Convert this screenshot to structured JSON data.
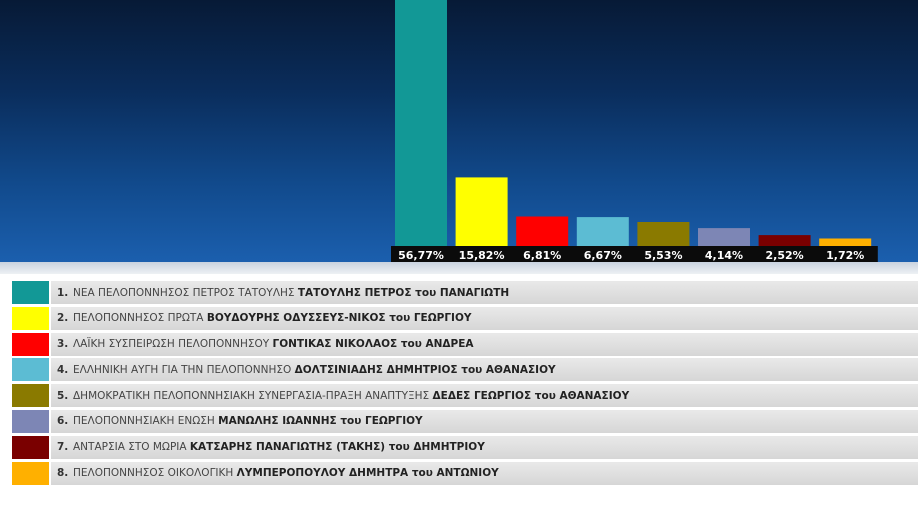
{
  "chart_data": {
    "type": "bar",
    "categories": [
      "1",
      "2",
      "3",
      "4",
      "5",
      "6",
      "7",
      "8"
    ],
    "values": [
      56.77,
      15.82,
      6.81,
      6.67,
      5.53,
      4.14,
      2.52,
      1.72
    ],
    "value_labels": [
      "56,77%",
      "15,82%",
      "6,81%",
      "6,67%",
      "5,53%",
      "4,14%",
      "2,52%",
      "1,72%"
    ],
    "colors": [
      "#129896",
      "#ffff00",
      "#ff0000",
      "#5cbcd3",
      "#8a7a00",
      "#7d86b5",
      "#7a0000",
      "#ffb000"
    ],
    "ylim": [
      0,
      56.77
    ],
    "grid": false
  },
  "legend": [
    {
      "num": "1.",
      "party": "ΝΕΑ ΠΕΛΟΠΟΝΝΗΣΟΣ ΠΕΤΡΟΣ ΤΑΤΟΥΛΗΣ",
      "candidate": "ΤΑΤΟΥΛΗΣ ΠΕΤΡΟΣ του ΠΑΝΑΓΙΩΤΗ"
    },
    {
      "num": "2.",
      "party": "ΠΕΛΟΠΟΝΝΗΣΟΣ ΠΡΩΤΑ",
      "candidate": "ΒΟΥΔΟΥΡΗΣ ΟΔΥΣΣΕΥΣ-ΝΙΚΟΣ του ΓΕΩΡΓΙΟΥ"
    },
    {
      "num": "3.",
      "party": "ΛΑΪΚΗ ΣΥΣΠΕΙΡΩΣΗ ΠΕΛΟΠΟΝΝΗΣΟΥ",
      "candidate": "ΓΟΝΤΙΚΑΣ ΝΙΚΟΛΑΟΣ του ΑΝΔΡΕΑ"
    },
    {
      "num": "4.",
      "party": "ΕΛΛΗΝΙΚΗ ΑΥΓΗ ΓΙΑ ΤΗΝ ΠΕΛΟΠΟΝΝΗΣΟ",
      "candidate": "ΔΟΛΤΣΙΝΙΑΔΗΣ ΔΗΜΗΤΡΙΟΣ του ΑΘΑΝΑΣΙΟΥ"
    },
    {
      "num": "5.",
      "party": "ΔΗΜΟΚΡΑΤΙΚΗ ΠΕΛΟΠΟΝΝΗΣΙΑΚΗ ΣΥΝΕΡΓΑΣΙΑ-ΠΡΑΞΗ ΑΝΑΠΤΥΞΗΣ",
      "candidate": "ΔΕΔΕΣ ΓΕΩΡΓΙΟΣ του ΑΘΑΝΑΣΙΟΥ"
    },
    {
      "num": "6.",
      "party": "ΠΕΛΟΠΟΝΝΗΣΙΑΚΗ ΕΝΩΣΗ",
      "candidate": "ΜΑΝΩΛΗΣ ΙΩΑΝΝΗΣ του ΓΕΩΡΓΙΟΥ"
    },
    {
      "num": "7.",
      "party": "ΑΝΤΑΡΣΙΑ ΣΤΟ ΜΩΡΙΑ",
      "candidate": "ΚΑΤΣΑΡΗΣ ΠΑΝΑΓΙΩΤΗΣ (ΤΑΚΗΣ) του ΔΗΜΗΤΡΙΟΥ"
    },
    {
      "num": "8.",
      "party": "ΠΕΛΟΠΟΝΝΗΣΟΣ ΟΙΚΟΛΟΓΙΚΗ",
      "candidate": "ΛΥΜΠΕΡΟΠΟΥΛΟΥ ΔΗΜΗΤΡΑ του ΑΝΤΩΝΙΟΥ"
    }
  ]
}
